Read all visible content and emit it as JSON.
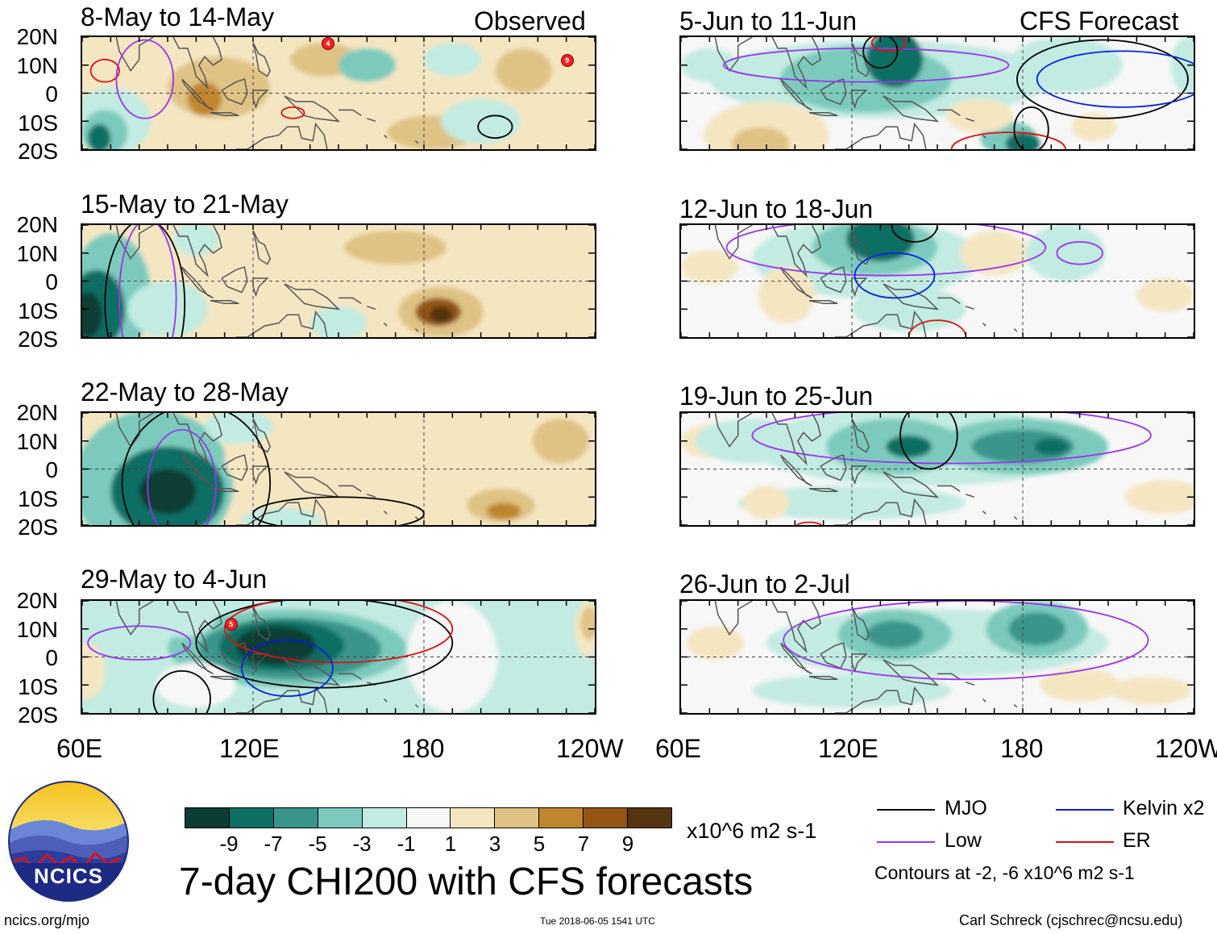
{
  "column_titles": {
    "observed": "Observed",
    "forecast": "CFS Forecast"
  },
  "panels": [
    {
      "title": "8-May to 14-May",
      "side": "observed"
    },
    {
      "title": "15-May to 21-May",
      "side": "observed"
    },
    {
      "title": "22-May to 28-May",
      "side": "observed"
    },
    {
      "title": "29-May to 4-Jun",
      "side": "observed"
    },
    {
      "title": "5-Jun to 11-Jun",
      "side": "forecast"
    },
    {
      "title": "12-Jun to 18-Jun",
      "side": "forecast"
    },
    {
      "title": "19-Jun to 25-Jun",
      "side": "forecast"
    },
    {
      "title": "26-Jun to 2-Jul",
      "side": "forecast"
    }
  ],
  "lat_labels": [
    "20N",
    "10N",
    "0",
    "10S",
    "20S"
  ],
  "lon_labels": [
    "60E",
    "120E",
    "180",
    "120W"
  ],
  "colorbar": {
    "colors": [
      "#0b3d34",
      "#0e6e63",
      "#3a958b",
      "#7ccabd",
      "#c2ebe2",
      "#f7f7f7",
      "#f5e6c2",
      "#dfc385",
      "#c0852f",
      "#935414",
      "#553410"
    ],
    "labels": [
      "-9",
      "-7",
      "-5",
      "-3",
      "-1",
      "1",
      "3",
      "5",
      "7",
      "9"
    ],
    "units": "x10^6 m2 s-1"
  },
  "main_title": "7-day CHI200 with CFS forecasts",
  "legend": {
    "items": [
      {
        "label": "MJO",
        "color": "#000000"
      },
      {
        "label": "Kelvin x2",
        "color": "#0022dd"
      },
      {
        "label": "Low",
        "color": "#9933ee"
      },
      {
        "label": "ER",
        "color": "#dd1111"
      }
    ],
    "note": "Contours at -2, -6 x10^6 m2 s-1"
  },
  "logo_text": "NCICS",
  "footer": {
    "url": "ncics.org/mjo",
    "timestamp": "Tue 2018-06-05 1541 UTC",
    "credit": "Carl Schreck (cjschrec@ncsu.edu)"
  },
  "storm_markers": [
    {
      "panel": 0,
      "label": "4"
    },
    {
      "panel": 0,
      "label": "9"
    },
    {
      "panel": 3,
      "label": "5"
    }
  ]
}
